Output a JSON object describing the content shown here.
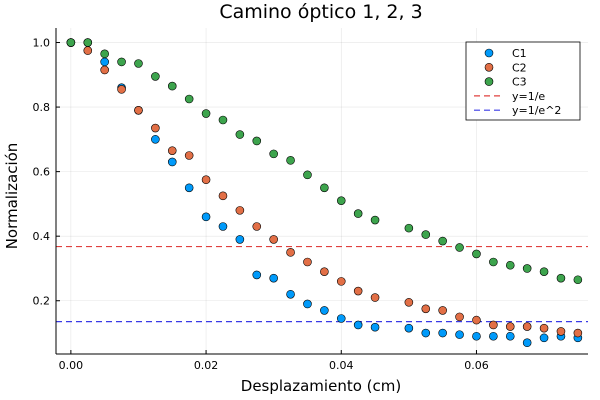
{
  "chart_data": {
    "type": "scatter",
    "title": "Camino óptico 1, 2, 3",
    "xlabel": "Desplazamiento (cm)",
    "ylabel": "Normalización",
    "xlim": [
      -0.0022,
      0.0765
    ],
    "ylim": [
      0.035,
      1.045
    ],
    "xticks": [
      0.0,
      0.02,
      0.04,
      0.06
    ],
    "xtick_labels": [
      "0.00",
      "0.02",
      "0.04",
      "0.06"
    ],
    "yticks": [
      0.2,
      0.4,
      0.6,
      0.8,
      1.0
    ],
    "ytick_labels": [
      "0.2",
      "0.4",
      "0.6",
      "0.8",
      "1.0"
    ],
    "grid": true,
    "legend_position": "top-right",
    "series": [
      {
        "name": "C1",
        "color": "#009AFA",
        "x": [
          0.0,
          0.0025,
          0.005,
          0.0075,
          0.01,
          0.0125,
          0.015,
          0.0175,
          0.02,
          0.0225,
          0.025,
          0.0275,
          0.03,
          0.0325,
          0.035,
          0.0375,
          0.04,
          0.0425,
          0.045,
          0.05,
          0.0525,
          0.055,
          0.0575,
          0.06,
          0.0625,
          0.065,
          0.0675,
          0.07,
          0.0725,
          0.075
        ],
        "y": [
          1.0,
          1.0,
          0.94,
          0.86,
          0.79,
          0.7,
          0.63,
          0.55,
          0.46,
          0.43,
          0.39,
          0.28,
          0.27,
          0.22,
          0.19,
          0.17,
          0.145,
          0.125,
          0.118,
          0.115,
          0.1,
          0.1,
          0.095,
          0.09,
          0.09,
          0.09,
          0.07,
          0.085,
          0.09,
          0.085
        ]
      },
      {
        "name": "C2",
        "color": "#E26F46",
        "x": [
          0.0,
          0.0025,
          0.005,
          0.0075,
          0.01,
          0.0125,
          0.015,
          0.0175,
          0.02,
          0.0225,
          0.025,
          0.0275,
          0.03,
          0.0325,
          0.035,
          0.0375,
          0.04,
          0.0425,
          0.045,
          0.05,
          0.0525,
          0.055,
          0.0575,
          0.06,
          0.0625,
          0.065,
          0.0675,
          0.07,
          0.0725,
          0.075
        ],
        "y": [
          1.0,
          0.975,
          0.915,
          0.855,
          0.79,
          0.735,
          0.665,
          0.65,
          0.575,
          0.525,
          0.48,
          0.43,
          0.39,
          0.35,
          0.32,
          0.29,
          0.26,
          0.23,
          0.21,
          0.195,
          0.175,
          0.17,
          0.15,
          0.14,
          0.125,
          0.12,
          0.12,
          0.115,
          0.105,
          0.1
        ]
      },
      {
        "name": "C3",
        "color": "#3DA44D",
        "x": [
          0.0,
          0.0025,
          0.005,
          0.0075,
          0.01,
          0.0125,
          0.015,
          0.0175,
          0.02,
          0.0225,
          0.025,
          0.0275,
          0.03,
          0.0325,
          0.035,
          0.0375,
          0.04,
          0.0425,
          0.045,
          0.05,
          0.0525,
          0.055,
          0.0575,
          0.06,
          0.0625,
          0.065,
          0.0675,
          0.07,
          0.0725,
          0.075
        ],
        "y": [
          1.0,
          1.0,
          0.965,
          0.94,
          0.935,
          0.895,
          0.865,
          0.825,
          0.78,
          0.76,
          0.715,
          0.695,
          0.655,
          0.635,
          0.59,
          0.55,
          0.51,
          0.47,
          0.45,
          0.425,
          0.405,
          0.385,
          0.365,
          0.345,
          0.32,
          0.31,
          0.3,
          0.29,
          0.27,
          0.265
        ]
      }
    ],
    "hlines": [
      {
        "name": "y=1/e",
        "y": 0.3679,
        "color": "#E0403F",
        "style": "dashed"
      },
      {
        "name": "y=1/e^2",
        "y": 0.1353,
        "color": "#3A3AE6",
        "style": "dashed"
      }
    ]
  }
}
